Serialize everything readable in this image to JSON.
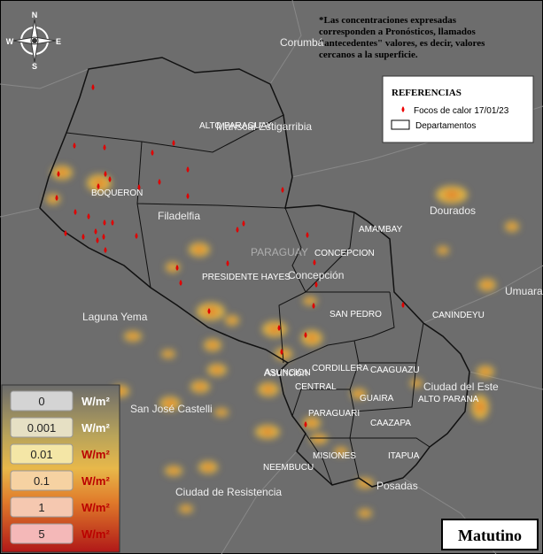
{
  "note": [
    "*Las concentraciones expresadas",
    "corresponden a Pronósticos, llamados",
    "\"antecedentes\" valores, es decir, valores",
    "cercanos a la superficie."
  ],
  "compass": {
    "n": "N",
    "s": "S",
    "e": "E",
    "w": "W"
  },
  "references": {
    "title": "REFERENCIAS",
    "fires": "Focos de calor 17/01/23",
    "departments": "Departamentos"
  },
  "scale": {
    "unit": "W/m²",
    "levels": [
      "0",
      "0.001",
      "0.01",
      "0.1",
      "1",
      "5"
    ]
  },
  "departments": [
    "ALTO PARAGUAY",
    "BOQUERON",
    "PRESIDENTE HAYES",
    "CONCEPCION",
    "AMAMBAY",
    "SAN PEDRO",
    "CANINDEYU",
    "CORDILLERA",
    "CAAGUAZU",
    "CENTRAL",
    "ASUNCION",
    "ALTO PARANA",
    "GUAIRA",
    "PARAGUARI",
    "CAAZAPA",
    "MISIONES",
    "ITAPUA",
    "NEEMBUCU"
  ],
  "places": [
    "Corumbá",
    "Dourados",
    "Umuarama",
    "Filadelfia",
    "Laguna Yema",
    "Mariscal Estigarribia",
    "Concepción",
    "Asunción",
    "Ciudad del Este",
    "San José Castelli",
    "Ciudad de Resistencia",
    "Posadas",
    "PARAGUAY"
  ],
  "period": "Matutino"
}
